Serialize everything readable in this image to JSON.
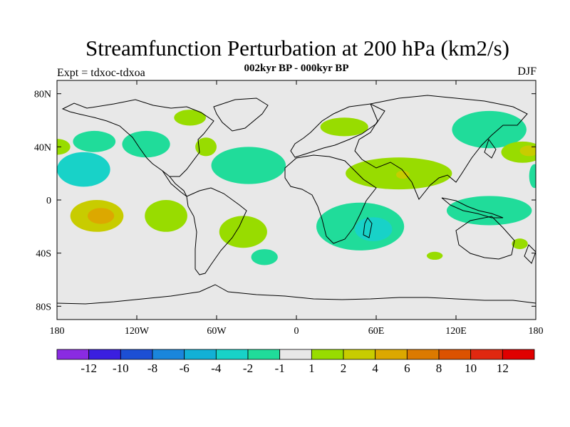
{
  "header": {
    "title": "Streamfunction Perturbation at 200 hPa (km2/s)",
    "subtitle": "002kyr BP - 000kyr BP",
    "left_label": "Expt = tdxoc-tdxoa",
    "right_label": "DJF"
  },
  "map": {
    "projection": "cylindrical equidistant",
    "lon_range": [
      -180,
      180
    ],
    "lat_range": [
      -90,
      90
    ],
    "background_color": "#e8e8e8",
    "x_ticks": [
      {
        "lon": -180,
        "label": "180"
      },
      {
        "lon": -120,
        "label": "120W"
      },
      {
        "lon": -60,
        "label": "60W"
      },
      {
        "lon": 0,
        "label": "0"
      },
      {
        "lon": 60,
        "label": "60E"
      },
      {
        "lon": 120,
        "label": "120E"
      },
      {
        "lon": 180,
        "label": "180"
      }
    ],
    "y_ticks": [
      {
        "lat": 80,
        "label": "80N"
      },
      {
        "lat": 40,
        "label": "40N"
      },
      {
        "lat": 0,
        "label": "0"
      },
      {
        "lat": -40,
        "label": "40S"
      },
      {
        "lat": -80,
        "label": "80S"
      }
    ],
    "field_regions": [
      {
        "id": "n-pacific-a",
        "lon": -180,
        "lat": 40,
        "rlon": 10,
        "rlat": 6,
        "value": 1
      },
      {
        "id": "w-pacific-cyan",
        "lon": -160,
        "lat": 23,
        "rlon": 20,
        "rlat": 13,
        "value": -2
      },
      {
        "id": "pacific-n-minus",
        "lon": -152,
        "lat": 44,
        "rlon": 16,
        "rlat": 8,
        "value": -1
      },
      {
        "id": "s-pacific-pos",
        "lon": -150,
        "lat": -12,
        "rlon": 20,
        "rlat": 12,
        "value": 2
      },
      {
        "id": "s-pacific-core",
        "lon": -147,
        "lat": -12,
        "rlon": 10,
        "rlat": 6,
        "value": 4
      },
      {
        "id": "n-america-green",
        "lon": -113,
        "lat": 42,
        "rlon": 18,
        "rlat": 10,
        "value": -1
      },
      {
        "id": "canada-green",
        "lon": -80,
        "lat": 62,
        "rlon": 12,
        "rlat": 6,
        "value": 1
      },
      {
        "id": "e-us-green",
        "lon": -68,
        "lat": 40,
        "rlon": 8,
        "rlat": 7,
        "value": 1
      },
      {
        "id": "atlantic-minus",
        "lon": -36,
        "lat": 26,
        "rlon": 28,
        "rlat": 14,
        "value": -1
      },
      {
        "id": "s-america-green",
        "lon": -98,
        "lat": -12,
        "rlon": 16,
        "rlat": 12,
        "value": 1
      },
      {
        "id": "s-atlantic-green",
        "lon": -40,
        "lat": -24,
        "rlon": 18,
        "rlat": 12,
        "value": 1
      },
      {
        "id": "s-atlantic-minus",
        "lon": -24,
        "lat": -43,
        "rlon": 10,
        "rlat": 6,
        "value": -1
      },
      {
        "id": "europe-green",
        "lon": 36,
        "lat": 55,
        "rlon": 18,
        "rlat": 7,
        "value": 1
      },
      {
        "id": "asia-green",
        "lon": 77,
        "lat": 20,
        "rlon": 40,
        "rlat": 12,
        "value": 1
      },
      {
        "id": "india-core",
        "lon": 80,
        "lat": 19,
        "rlon": 5,
        "rlat": 3,
        "value": 2
      },
      {
        "id": "s-indian-minus",
        "lon": 48,
        "lat": -20,
        "rlon": 33,
        "rlat": 18,
        "value": -1
      },
      {
        "id": "s-indian-cyan",
        "lon": 58,
        "lat": -22,
        "rlon": 14,
        "rlat": 9,
        "value": -2
      },
      {
        "id": "ne-asia-minus",
        "lon": 145,
        "lat": 53,
        "rlon": 28,
        "rlat": 14,
        "value": -1
      },
      {
        "id": "pacific-ne-green",
        "lon": 170,
        "lat": 36,
        "rlon": 16,
        "rlat": 8,
        "value": 1
      },
      {
        "id": "pacific-ne-core",
        "lon": 175,
        "lat": 37,
        "rlon": 7,
        "rlat": 4,
        "value": 2
      },
      {
        "id": "w-pacific-minus",
        "lon": 145,
        "lat": -8,
        "rlon": 32,
        "rlat": 11,
        "value": -1
      },
      {
        "id": "s-pacific-east-green",
        "lon": 168,
        "lat": -33,
        "rlon": 6,
        "rlat": 4,
        "value": 1
      },
      {
        "id": "indian-south-green",
        "lon": 104,
        "lat": -42,
        "rlon": 6,
        "rlat": 3,
        "value": 1
      },
      {
        "id": "pacific-east-minus",
        "lon": 179,
        "lat": 18,
        "rlon": 4,
        "rlat": 9,
        "value": -1
      }
    ]
  },
  "colorbar": {
    "labels": [
      "-12",
      "-10",
      "-8",
      "-6",
      "-4",
      "-2",
      "-1",
      "1",
      "2",
      "4",
      "6",
      "8",
      "10",
      "12"
    ],
    "colors": [
      "#8a2be2",
      "#3a1fe0",
      "#1c4fd4",
      "#1a86dc",
      "#12b0d6",
      "#18d2c8",
      "#20dc9a",
      "#e8e8e8",
      "#98dc00",
      "#c8cc00",
      "#dca800",
      "#dc7a00",
      "#dc5200",
      "#e02810",
      "#e00000"
    ]
  }
}
